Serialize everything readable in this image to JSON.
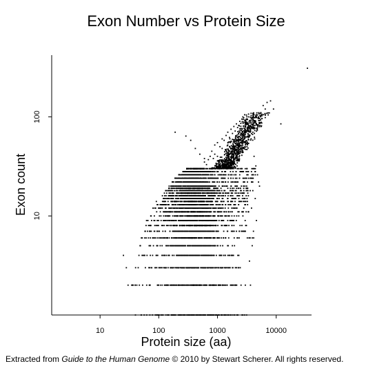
{
  "chart_data": {
    "type": "scatter",
    "title": "Exon Number vs Protein Size",
    "xlabel": "Protein size (aa)",
    "ylabel": "Exon count",
    "x_scale": "log",
    "y_scale": "log",
    "xlim": [
      1.5,
      40000
    ],
    "ylim": [
      1,
      420
    ],
    "x_ticks": [
      10,
      100,
      1000,
      10000
    ],
    "x_tick_labels": [
      "10",
      "100",
      "1000",
      "10000"
    ],
    "y_ticks": [
      10,
      100
    ],
    "y_tick_labels": [
      "10",
      "100"
    ],
    "grid": false,
    "point_color": "#000000",
    "exon_rows": [
      {
        "y": 1,
        "xmin": 45,
        "xmax": 3300
      },
      {
        "y": 2,
        "xmin": 33,
        "xmax": 4000
      },
      {
        "y": 3,
        "xmin": 40,
        "xmax": 2500
      },
      {
        "y": 4,
        "xmin": 42,
        "xmax": 2500
      },
      {
        "y": 5,
        "xmin": 48,
        "xmax": 2100
      },
      {
        "y": 6,
        "xmin": 50,
        "xmax": 4300
      },
      {
        "y": 7,
        "xmin": 55,
        "xmax": 3000
      },
      {
        "y": 8,
        "xmin": 60,
        "xmax": 3300
      },
      {
        "y": 9,
        "xmin": 60,
        "xmax": 3200
      },
      {
        "y": 10,
        "xmin": 65,
        "xmax": 2800
      },
      {
        "y": 11,
        "xmin": 70,
        "xmax": 3900
      },
      {
        "y": 12,
        "xmin": 75,
        "xmax": 3500
      },
      {
        "y": 13,
        "xmin": 85,
        "xmax": 3600
      },
      {
        "y": 14,
        "xmin": 90,
        "xmax": 3300
      },
      {
        "y": 15,
        "xmin": 100,
        "xmax": 3200
      },
      {
        "y": 16,
        "xmin": 110,
        "xmax": 3600
      },
      {
        "y": 17,
        "xmin": 120,
        "xmax": 3400
      },
      {
        "y": 18,
        "xmin": 130,
        "xmax": 3700
      },
      {
        "y": 19,
        "xmin": 140,
        "xmax": 3600
      },
      {
        "y": 20,
        "xmin": 150,
        "xmax": 3900
      },
      {
        "y": 22,
        "xmin": 170,
        "xmax": 4100
      },
      {
        "y": 24,
        "xmin": 190,
        "xmax": 4300
      },
      {
        "y": 26,
        "xmin": 220,
        "xmax": 4500
      },
      {
        "y": 28,
        "xmin": 260,
        "xmax": 4600
      },
      {
        "y": 30,
        "xmin": 300,
        "xmax": 4700
      }
    ],
    "sparse_points": [
      [
        25,
        4
      ],
      [
        30,
        2
      ],
      [
        28,
        3
      ],
      [
        40,
        1
      ],
      [
        190,
        70
      ],
      [
        290,
        64
      ],
      [
        350,
        58
      ],
      [
        420,
        48
      ],
      [
        500,
        42
      ],
      [
        600,
        35
      ],
      [
        700,
        37
      ],
      [
        800,
        45
      ],
      [
        900,
        52
      ],
      [
        1000,
        55
      ],
      [
        1100,
        50
      ],
      [
        1200,
        60
      ],
      [
        1300,
        58
      ],
      [
        1400,
        65
      ],
      [
        1500,
        70
      ],
      [
        1600,
        62
      ],
      [
        1700,
        75
      ],
      [
        1800,
        68
      ],
      [
        1900,
        80
      ],
      [
        2000,
        72
      ],
      [
        2100,
        85
      ],
      [
        2200,
        78
      ],
      [
        2300,
        82
      ],
      [
        2400,
        90
      ],
      [
        2500,
        86
      ],
      [
        2600,
        95
      ],
      [
        2700,
        100
      ],
      [
        2800,
        98
      ],
      [
        2900,
        105
      ],
      [
        3000,
        92
      ],
      [
        3200,
        88
      ],
      [
        3400,
        82
      ],
      [
        3700,
        76
      ],
      [
        4000,
        70
      ],
      [
        4300,
        60
      ],
      [
        1200,
        48
      ],
      [
        1000,
        40
      ],
      [
        900,
        42
      ],
      [
        850,
        38
      ],
      [
        750,
        40
      ],
      [
        650,
        33
      ],
      [
        600,
        38
      ],
      [
        1500,
        52
      ],
      [
        1700,
        56
      ],
      [
        2000,
        54
      ],
      [
        2300,
        60
      ],
      [
        2500,
        58
      ],
      [
        2700,
        66
      ],
      [
        3000,
        70
      ],
      [
        3300,
        64
      ],
      [
        4200,
        40
      ],
      [
        4500,
        32
      ],
      [
        4800,
        26
      ],
      [
        5000,
        22
      ],
      [
        4000,
        18
      ],
      [
        4400,
        15
      ],
      [
        3800,
        12
      ],
      [
        4600,
        9
      ],
      [
        4100,
        7
      ],
      [
        3600,
        6
      ],
      [
        3900,
        5
      ],
      [
        3500,
        3.5
      ],
      [
        5200,
        20
      ],
      [
        6000,
        130
      ],
      [
        6500,
        120
      ],
      [
        7000,
        140
      ],
      [
        8000,
        145
      ],
      [
        12000,
        85
      ],
      [
        34000,
        310
      ],
      [
        9000,
        120
      ],
      [
        5500,
        110
      ],
      [
        5000,
        100
      ]
    ]
  },
  "footer": {
    "prefix": "Extracted from ",
    "book": "Guide to the Human Genome",
    "suffix": " © 2010 by Stewart Scherer.  All rights reserved."
  }
}
